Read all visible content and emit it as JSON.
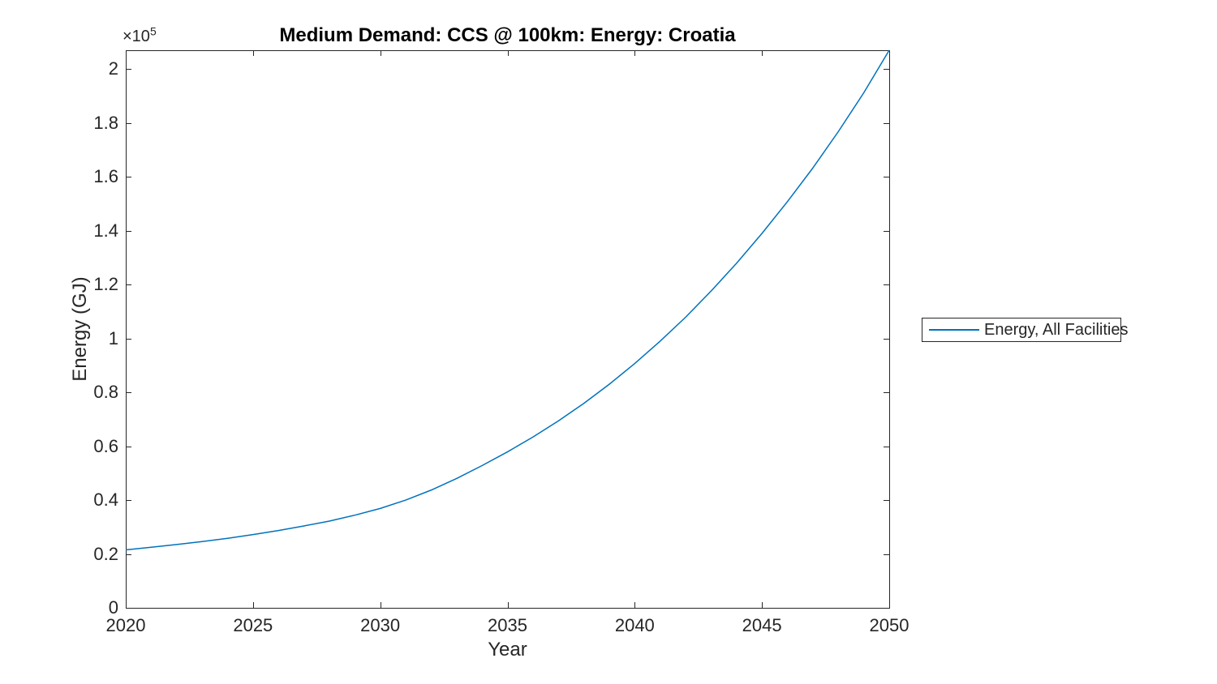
{
  "figure": {
    "title": "Medium Demand: CCS @ 100km: Energy: Croatia",
    "background_color": "#ffffff"
  },
  "axes": {
    "xlabel": "Year",
    "ylabel": "Energy (GJ)",
    "multiplier": {
      "base": "×10",
      "exponent": "5"
    },
    "x_tick_labels": [
      "2020",
      "2025",
      "2030",
      "2035",
      "2040",
      "2045",
      "2050"
    ],
    "y_tick_labels": [
      "0",
      "0.2",
      "0.4",
      "0.6",
      "0.8",
      "1",
      "1.2",
      "1.4",
      "1.6",
      "1.8",
      "2"
    ],
    "axis_color": "#262626",
    "text_color": "#262626"
  },
  "legend": {
    "entries": [
      {
        "label": "Energy, All Facilities",
        "color": "#0072BD"
      }
    ]
  },
  "chart_data": {
    "type": "line",
    "title": "Medium Demand: CCS @ 100km: Energy: Croatia",
    "xlabel": "Year",
    "ylabel": "Energy (GJ)",
    "xlim": [
      2020,
      2050
    ],
    "ylim": [
      0,
      207000
    ],
    "x_ticks": [
      2020,
      2025,
      2030,
      2035,
      2040,
      2045,
      2050
    ],
    "y_ticks": [
      0,
      20000,
      40000,
      60000,
      80000,
      100000,
      120000,
      140000,
      160000,
      180000,
      200000
    ],
    "grid": false,
    "legend_position": "right-outside",
    "x": [
      2020,
      2021,
      2022,
      2023,
      2024,
      2025,
      2026,
      2027,
      2028,
      2029,
      2030,
      2031,
      2032,
      2033,
      2034,
      2035,
      2036,
      2037,
      2038,
      2039,
      2040,
      2041,
      2042,
      2043,
      2044,
      2045,
      2046,
      2047,
      2048,
      2049,
      2050
    ],
    "series": [
      {
        "name": "Energy, All Facilities",
        "color": "#0072BD",
        "values": [
          21500,
          22500,
          23500,
          24600,
          25800,
          27200,
          28700,
          30400,
          32200,
          34400,
          36900,
          40000,
          43700,
          48000,
          52800,
          57900,
          63400,
          69400,
          75900,
          83000,
          90700,
          99000,
          107900,
          117600,
          127900,
          139000,
          150800,
          163300,
          176800,
          191200,
          207000
        ]
      }
    ]
  }
}
